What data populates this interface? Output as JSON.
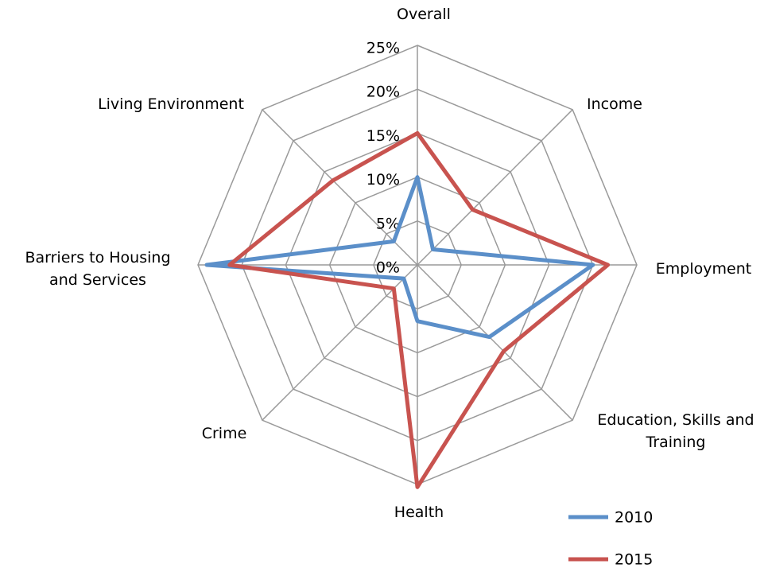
{
  "chart_data": {
    "type": "radar",
    "categories": [
      "Overall",
      "Income",
      "Employment",
      "Education, Skills and Training",
      "Health",
      "Crime",
      "Barriers to Housing and Services",
      "Living Environment"
    ],
    "series": [
      {
        "name": "2010",
        "color": "#5b8fc9",
        "values": [
          10,
          2.5,
          20,
          11.6,
          6.4,
          2.2,
          24,
          3.8
        ]
      },
      {
        "name": "2015",
        "color": "#c8534f",
        "values": [
          15,
          8.9,
          21.7,
          13.9,
          25.3,
          3.8,
          21.4,
          13.6
        ]
      }
    ],
    "ylim": [
      0,
      25
    ],
    "yticks": [
      {
        "value": 0,
        "label": "0%"
      },
      {
        "value": 5,
        "label": "5%"
      },
      {
        "value": 10,
        "label": "10%"
      },
      {
        "value": 15,
        "label": "15%"
      },
      {
        "value": 20,
        "label": "20%"
      },
      {
        "value": 25,
        "label": "25%"
      }
    ],
    "grid": true,
    "legend": "bottom-right"
  }
}
